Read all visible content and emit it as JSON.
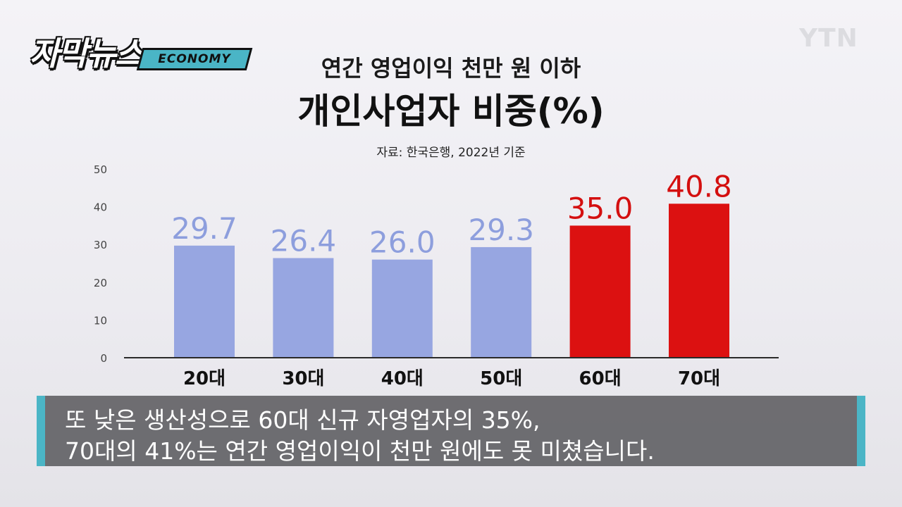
{
  "logo": {
    "main": "자막뉴스",
    "badge": "ECONOMY"
  },
  "watermark": "YTN",
  "header": {
    "title_top": "연간 영업이익 천만 원 이하",
    "title_main": "개인사업자 비중(%)",
    "source": "자료: 한국은행, 2022년 기준"
  },
  "chart_data": {
    "type": "bar",
    "title": "개인사업자 비중(%)",
    "categories": [
      "20대",
      "30대",
      "40대",
      "50대",
      "60대",
      "70대"
    ],
    "values": [
      29.7,
      26.4,
      26.0,
      29.3,
      35.0,
      40.8
    ],
    "value_labels": [
      "29.7",
      "26.4",
      "26.0",
      "29.3",
      "35.0",
      "40.8"
    ],
    "ylim": [
      0,
      50
    ],
    "yticks": [
      0,
      10,
      20,
      30,
      40,
      50
    ],
    "grid": false,
    "colors": {
      "normal": "#97a6e1",
      "highlight": "#dc1111",
      "normal_label": "#8d9edd",
      "highlight_label": "#d40f0f"
    },
    "highlight": [
      false,
      false,
      false,
      false,
      true,
      true
    ]
  },
  "subtitle": {
    "line1": "또 낮은 생산성으로 60대 신규 자영업자의 35%,",
    "line2": "70대의 41%는 연간 영업이익이 천만 원에도 못 미쳤습니다."
  }
}
